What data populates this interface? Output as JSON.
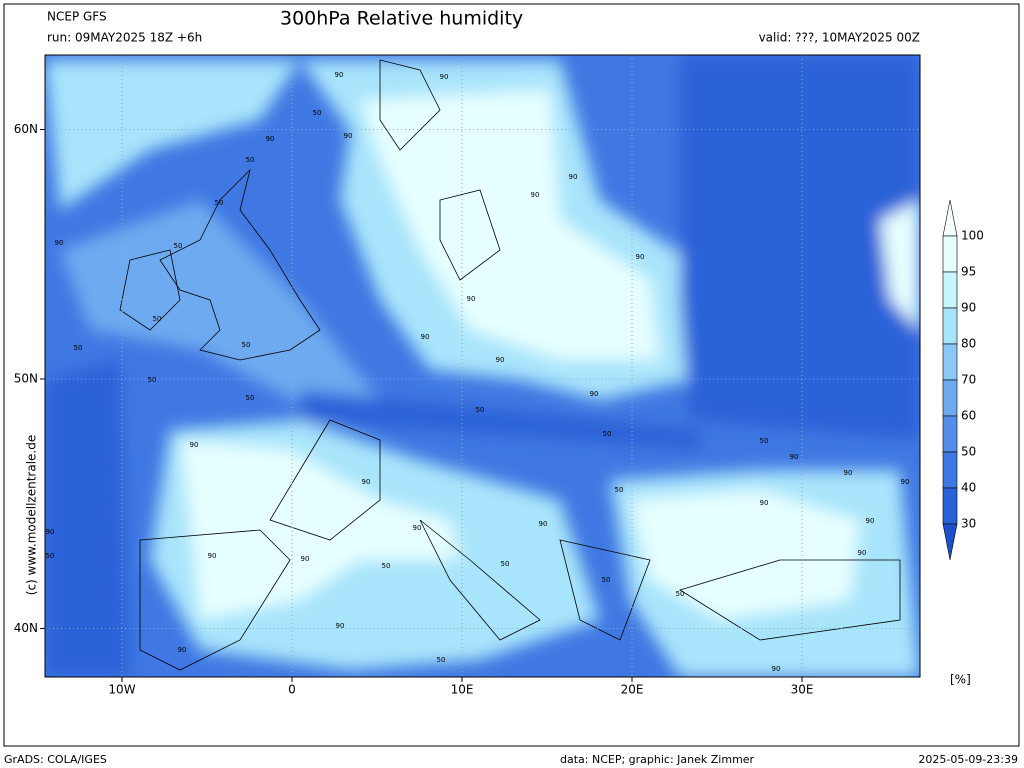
{
  "header": {
    "model": "NCEP GFS",
    "title": "300hPa Relative humidity",
    "run": "run: 09MAY2025 18Z +6h",
    "valid": "valid: ???, 10MAY2025 00Z"
  },
  "map": {
    "lon_labels": [
      {
        "value": -10,
        "label": "10W"
      },
      {
        "value": 0,
        "label": "0"
      },
      {
        "value": 10,
        "label": "10E"
      },
      {
        "value": 20,
        "label": "20E"
      },
      {
        "value": 30,
        "label": "30E"
      }
    ],
    "lat_labels": [
      {
        "value": 60,
        "label": "60N"
      },
      {
        "value": 50,
        "label": "50N"
      },
      {
        "value": 40,
        "label": "40N"
      }
    ],
    "contour_labels": [
      "90",
      "90",
      "50",
      "90",
      "90",
      "50",
      "50",
      "90",
      "50",
      "50",
      "50",
      "50",
      "50",
      "90",
      "90",
      "90",
      "50",
      "90",
      "50",
      "50",
      "90",
      "90",
      "50",
      "50",
      "90",
      "90",
      "90",
      "90",
      "90",
      "90",
      "90",
      "90",
      "50",
      "50",
      "50",
      "50",
      "90",
      "90",
      "50",
      "90",
      "90",
      "90",
      "90",
      "50",
      "90",
      "90",
      "90"
    ]
  },
  "colorbar": {
    "levels": [
      100,
      95,
      90,
      80,
      70,
      60,
      50,
      40,
      30
    ],
    "colors": [
      "#f4ffff",
      "#e6ffff",
      "#c8f6fd",
      "#a8e4fb",
      "#8cc8f5",
      "#6eaaf0",
      "#558ee9",
      "#3f78e2",
      "#2a62d8",
      "#1c50cc"
    ],
    "unit": "[%]"
  },
  "footer": {
    "left": "GrADS: COLA/IGES",
    "credit": "data: NCEP; graphic: Janek Zimmer",
    "timestamp": "2025-05-09-23:39",
    "copyright": "(c) www.modellzentrale.de"
  }
}
